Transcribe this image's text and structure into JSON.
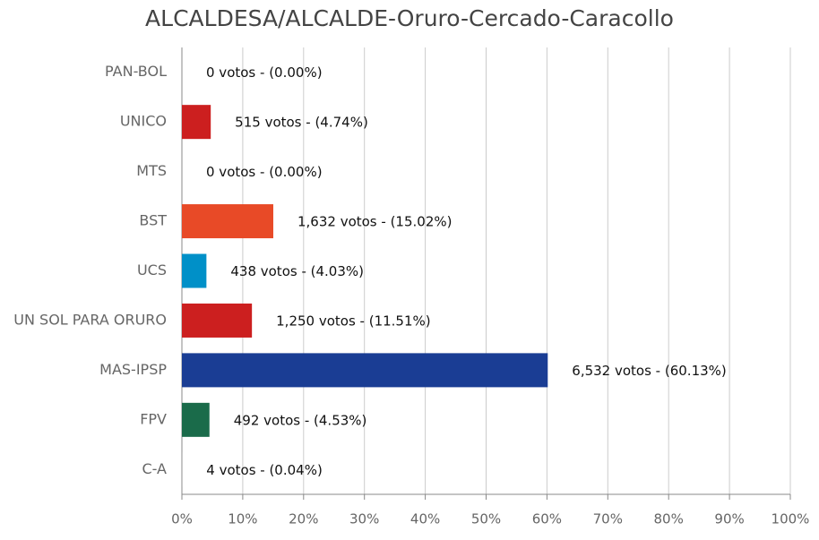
{
  "chart_data": {
    "type": "bar",
    "orientation": "horizontal",
    "title": "ALCALDESA/ALCALDE-Oruro-Cercado-Caracollo",
    "categories": [
      "PAN-BOL",
      "UNICO",
      "MTS",
      "BST",
      "UCS",
      "UN SOL PARA ORURO",
      "MAS-IPSP",
      "FPV",
      "C-A"
    ],
    "values": [
      0,
      4.74,
      0,
      15.02,
      4.03,
      11.51,
      60.13,
      4.53,
      0.04
    ],
    "value_labels": [
      "0 votos - (0.00%)",
      "515 votos - (4.74%)",
      "0 votos - (0.00%)",
      "1,632 votos - (15.02%)",
      "438 votos - (4.03%)",
      "1,250 votos - (11.51%)",
      "6,532 votos - (60.13%)",
      "492 votos - (4.53%)",
      "4 votos - (0.04%)"
    ],
    "colors": [
      "#999999",
      "#cc1f1f",
      "#999999",
      "#e84a27",
      "#0090c8",
      "#cc1f1f",
      "#1a3d94",
      "#1a6b4a",
      "#999999"
    ],
    "xlim": [
      0,
      100
    ],
    "xticks": [
      {
        "value": 0,
        "label": "0%"
      },
      {
        "value": 10,
        "label": "10%"
      },
      {
        "value": 20,
        "label": "20%"
      },
      {
        "value": 30,
        "label": "30%"
      },
      {
        "value": 40,
        "label": "40%"
      },
      {
        "value": 50,
        "label": "50%"
      },
      {
        "value": 60,
        "label": "60%"
      },
      {
        "value": 70,
        "label": "70%"
      },
      {
        "value": 80,
        "label": "80%"
      },
      {
        "value": 90,
        "label": "90%"
      },
      {
        "value": 100,
        "label": "100%"
      }
    ],
    "grid": true
  }
}
